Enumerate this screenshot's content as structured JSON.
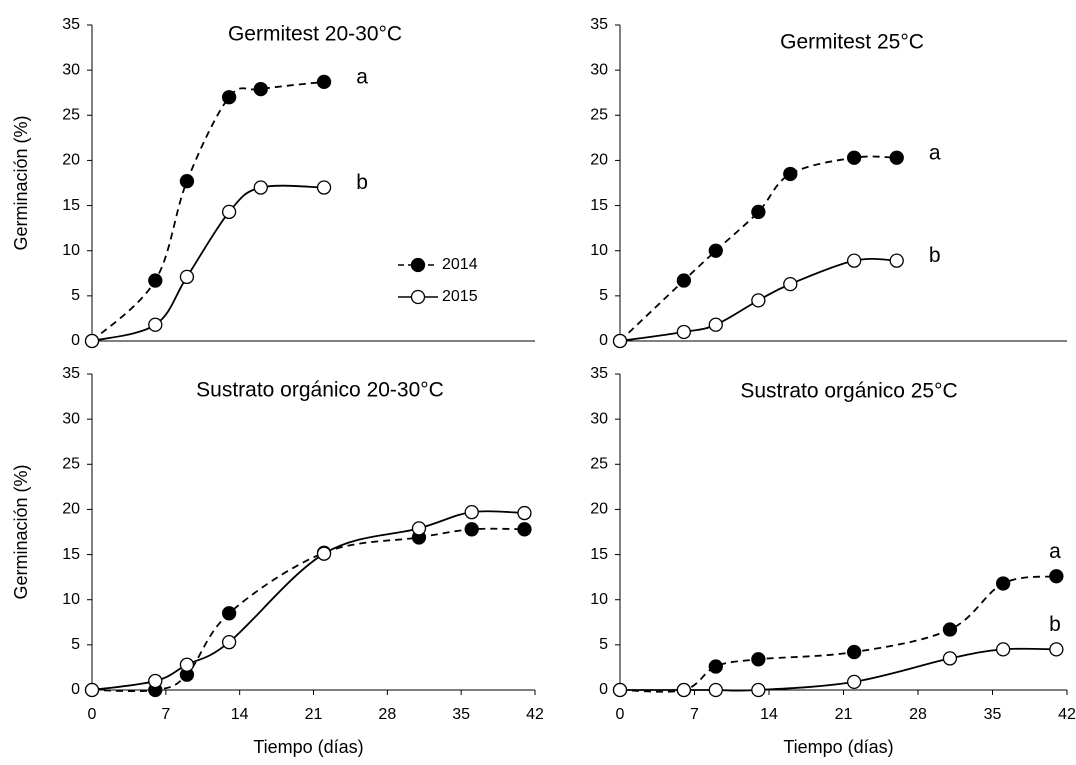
{
  "chart_data": [
    {
      "type": "line",
      "title": "Germitest 20-30°C",
      "y_label": "Germinación (%)",
      "ylim": [
        0,
        35
      ],
      "yticks": [
        0,
        5,
        10,
        15,
        20,
        25,
        30,
        35
      ],
      "xlim": [
        0,
        42
      ],
      "legend": true,
      "series": [
        {
          "name": "2014",
          "color": "#000000",
          "dashed": true,
          "marker_fill": "#000000",
          "annotation": "a",
          "x": [
            0,
            6,
            9,
            13,
            16,
            22
          ],
          "values": [
            0,
            6.7,
            17.7,
            27,
            27.9,
            28.7
          ]
        },
        {
          "name": "2015",
          "color": "#000000",
          "dashed": false,
          "marker_fill": "#ffffff",
          "annotation": "b",
          "x": [
            0,
            6,
            9,
            13,
            16,
            22
          ],
          "values": [
            0,
            1.8,
            7.1,
            14.3,
            17,
            17
          ]
        }
      ]
    },
    {
      "type": "line",
      "title": "Germitest 25°C",
      "ylim": [
        0,
        35
      ],
      "yticks": [
        0,
        5,
        10,
        15,
        20,
        25,
        30,
        35
      ],
      "xlim": [
        0,
        42
      ],
      "legend": false,
      "series": [
        {
          "color": "#000000",
          "dashed": true,
          "marker_fill": "#000000",
          "annotation": "a",
          "x": [
            0,
            6,
            9,
            13,
            16,
            22,
            26
          ],
          "values": [
            0,
            6.7,
            10,
            14.3,
            18.5,
            20.3,
            20.3
          ]
        },
        {
          "color": "#000000",
          "dashed": false,
          "marker_fill": "#ffffff",
          "annotation": "b",
          "x": [
            0,
            6,
            9,
            13,
            16,
            22,
            26
          ],
          "values": [
            0,
            1,
            1.8,
            4.5,
            6.3,
            8.9,
            8.9
          ]
        }
      ]
    },
    {
      "type": "line",
      "title": "Sustrato orgánico 20-30°C",
      "y_label": "Germinación (%)",
      "x_label": "Tiempo (días)",
      "ylim": [
        0,
        35
      ],
      "yticks": [
        0,
        5,
        10,
        15,
        20,
        25,
        30,
        35
      ],
      "xlim": [
        0,
        42
      ],
      "xticks": [
        0,
        7,
        14,
        21,
        28,
        35,
        42
      ],
      "legend": false,
      "series": [
        {
          "color": "#000000",
          "dashed": true,
          "marker_fill": "#000000",
          "x": [
            0,
            6,
            9,
            13,
            22,
            31,
            36,
            41
          ],
          "values": [
            0,
            0,
            1.7,
            8.5,
            15.2,
            16.9,
            17.8,
            17.8
          ]
        },
        {
          "color": "#000000",
          "dashed": false,
          "marker_fill": "#ffffff",
          "x": [
            0,
            6,
            9,
            13,
            22,
            31,
            36,
            41
          ],
          "values": [
            0,
            1,
            2.8,
            5.3,
            15.1,
            17.9,
            19.7,
            19.6
          ]
        }
      ]
    },
    {
      "type": "line",
      "title": "Sustrato orgánico 25°C",
      "x_label": "Tiempo (días)",
      "ylim": [
        0,
        35
      ],
      "yticks": [
        0,
        5,
        10,
        15,
        20,
        25,
        30,
        35
      ],
      "xlim": [
        0,
        42
      ],
      "xticks": [
        0,
        7,
        14,
        21,
        28,
        35,
        42
      ],
      "legend": false,
      "series": [
        {
          "color": "#000000",
          "dashed": true,
          "marker_fill": "#000000",
          "annotation": "a",
          "x": [
            0,
            6,
            9,
            13,
            22,
            31,
            36,
            41
          ],
          "values": [
            0,
            0,
            2.6,
            3.4,
            4.2,
            6.7,
            11.8,
            12.6
          ]
        },
        {
          "color": "#000000",
          "dashed": false,
          "marker_fill": "#ffffff",
          "annotation": "b",
          "x": [
            0,
            6,
            9,
            13,
            22,
            31,
            36,
            41
          ],
          "values": [
            0,
            0,
            0,
            0,
            0.9,
            3.5,
            4.5,
            4.5
          ]
        }
      ]
    }
  ]
}
